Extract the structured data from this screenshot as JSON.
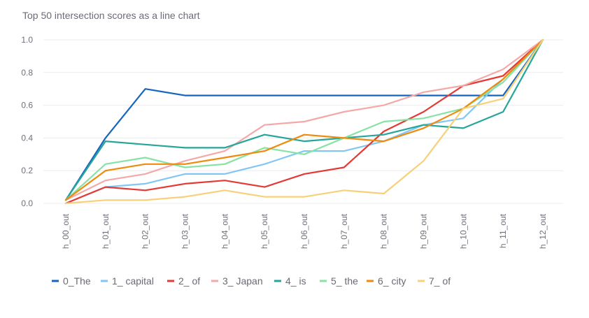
{
  "chart_data": {
    "type": "line",
    "title": "Top 50 intersection scores as a line chart",
    "xlabel": "",
    "ylabel": "",
    "ylim": [
      0,
      1
    ],
    "yticks": [
      "0.0",
      "0.2",
      "0.4",
      "0.6",
      "0.8",
      "1.0"
    ],
    "ytick_values": [
      0,
      0.2,
      0.4,
      0.6,
      0.8,
      1.0
    ],
    "categories": [
      "h_00_out",
      "h_01_out",
      "h_02_out",
      "h_03_out",
      "h_04_out",
      "h_05_out",
      "h_06_out",
      "h_07_out",
      "h_08_out",
      "h_09_out",
      "h_10_out",
      "h_11_out",
      "h_12_out"
    ],
    "legend_position": "bottom-left",
    "series": [
      {
        "name": "0_The",
        "color": "#1565c0",
        "values": [
          0.02,
          0.4,
          0.7,
          0.66,
          0.66,
          0.66,
          0.66,
          0.66,
          0.66,
          0.66,
          0.66,
          0.66,
          1.0
        ]
      },
      {
        "name": "1_ capital",
        "color": "#81c7f6",
        "values": [
          0.0,
          0.1,
          0.12,
          0.18,
          0.18,
          0.24,
          0.32,
          0.32,
          0.38,
          0.48,
          0.52,
          0.76,
          1.0
        ]
      },
      {
        "name": "2_ of",
        "color": "#e53935",
        "values": [
          0.0,
          0.1,
          0.08,
          0.12,
          0.14,
          0.1,
          0.18,
          0.22,
          0.44,
          0.56,
          0.72,
          0.78,
          1.0
        ]
      },
      {
        "name": "3_ Japan",
        "color": "#f4a9a8",
        "values": [
          0.02,
          0.14,
          0.18,
          0.26,
          0.32,
          0.48,
          0.5,
          0.56,
          0.6,
          0.68,
          0.72,
          0.82,
          1.0
        ]
      },
      {
        "name": "4_ is",
        "color": "#26a69a",
        "values": [
          0.02,
          0.38,
          0.36,
          0.34,
          0.34,
          0.42,
          0.38,
          0.4,
          0.42,
          0.48,
          0.46,
          0.56,
          1.0
        ]
      },
      {
        "name": "5_ the",
        "color": "#86e3a4",
        "values": [
          0.02,
          0.24,
          0.28,
          0.22,
          0.24,
          0.34,
          0.3,
          0.4,
          0.5,
          0.52,
          0.58,
          0.74,
          1.0
        ]
      },
      {
        "name": "6_ city",
        "color": "#ef8a0c",
        "values": [
          0.02,
          0.2,
          0.24,
          0.24,
          0.28,
          0.32,
          0.42,
          0.4,
          0.38,
          0.46,
          0.58,
          0.76,
          1.0
        ]
      },
      {
        "name": "7_ of",
        "color": "#f7d078",
        "values": [
          0.0,
          0.02,
          0.02,
          0.04,
          0.08,
          0.04,
          0.04,
          0.08,
          0.06,
          0.26,
          0.58,
          0.64,
          1.0
        ]
      }
    ]
  }
}
